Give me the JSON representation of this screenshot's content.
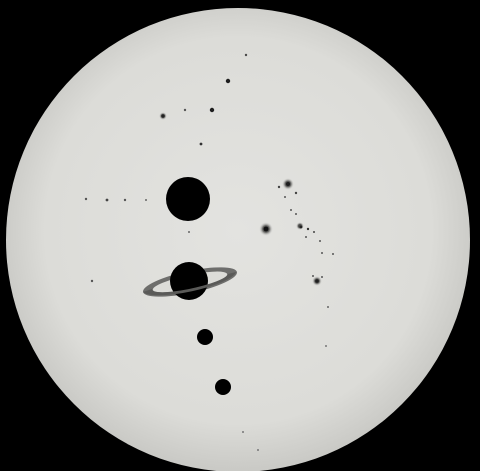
{
  "scene": {
    "subject": "solar-projection-transit-disk",
    "colors": {
      "background": "#000000",
      "disk": "#dededb",
      "disk_edge": "#c9c9c5",
      "silhouette": "#000000",
      "ring_outer": "#6e6e6c",
      "ring_inner": "#3a3a39",
      "speckle": "#4a4a4a",
      "speckle_halo": "#9a9a97"
    },
    "icons": [
      "large-planet-silhouette",
      "ringed-planet-silhouette",
      "small-planet-silhouette",
      "sunspot-dots"
    ]
  }
}
